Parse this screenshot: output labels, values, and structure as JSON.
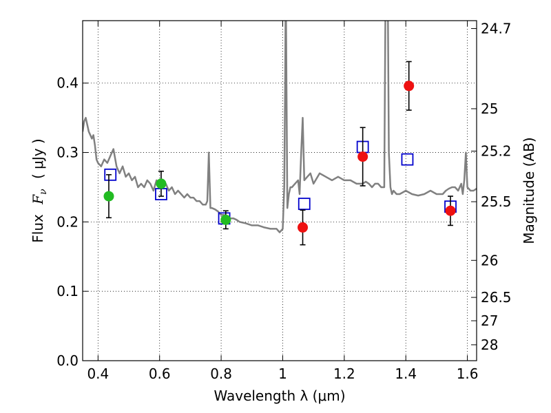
{
  "chart_data": {
    "type": "scatter",
    "xlabel": "Wavelength  λ (μm)",
    "ylabel_text": "Flux",
    "ylabel_math": "F",
    "ylabel_sub": "ν",
    "ylabel_units": "( μJy )",
    "y2label": "Magnitude (AB)",
    "xlim": [
      0.35,
      1.63
    ],
    "ylim": [
      0.0,
      0.49
    ],
    "grid": true,
    "x_ticks": [
      0.4,
      0.6,
      0.8,
      1.0,
      1.2,
      1.4,
      1.6
    ],
    "x_tick_labels": [
      "0.4",
      "0.6",
      "0.8",
      "1",
      "1.2",
      "1.4",
      "1.6"
    ],
    "y_ticks": [
      0.0,
      0.1,
      0.2,
      0.3,
      0.4
    ],
    "y_tick_labels": [
      "0.0",
      "0.1",
      "0.2",
      "0.3",
      "0.4"
    ],
    "mag_ticks": [
      24.7,
      25,
      25.2,
      25.5,
      26,
      26.5,
      27,
      28
    ],
    "mag_tick_labels": [
      "24.7",
      "25",
      "25.2",
      "25.5",
      "26",
      "26.5",
      "27",
      "28"
    ],
    "colors": {
      "spectrum": "#808080",
      "green_points": "#22bb22",
      "red_points": "#ee1111",
      "model_squares": "#0000cc",
      "errorbar": "#000000"
    },
    "series": [
      {
        "name": "spectrum",
        "kind": "line",
        "x": [
          0.35,
          0.355,
          0.36,
          0.365,
          0.37,
          0.375,
          0.38,
          0.385,
          0.39,
          0.395,
          0.4,
          0.41,
          0.42,
          0.43,
          0.44,
          0.45,
          0.46,
          0.465,
          0.47,
          0.48,
          0.49,
          0.5,
          0.51,
          0.52,
          0.53,
          0.54,
          0.55,
          0.56,
          0.57,
          0.58,
          0.59,
          0.6,
          0.61,
          0.62,
          0.63,
          0.64,
          0.65,
          0.66,
          0.67,
          0.68,
          0.69,
          0.7,
          0.71,
          0.72,
          0.73,
          0.74,
          0.75,
          0.755,
          0.76,
          0.765,
          0.77,
          0.78,
          0.79,
          0.8,
          0.81,
          0.82,
          0.83,
          0.84,
          0.85,
          0.86,
          0.88,
          0.9,
          0.92,
          0.94,
          0.96,
          0.98,
          0.99,
          1.0,
          1.005,
          1.008,
          1.01,
          1.012,
          1.015,
          1.02,
          1.025,
          1.03,
          1.04,
          1.05,
          1.055,
          1.06,
          1.065,
          1.07,
          1.08,
          1.09,
          1.1,
          1.12,
          1.14,
          1.16,
          1.18,
          1.2,
          1.22,
          1.24,
          1.26,
          1.27,
          1.28,
          1.29,
          1.3,
          1.31,
          1.32,
          1.33,
          1.335,
          1.34,
          1.345,
          1.35,
          1.355,
          1.36,
          1.37,
          1.38,
          1.4,
          1.42,
          1.44,
          1.46,
          1.48,
          1.5,
          1.52,
          1.53,
          1.54,
          1.55,
          1.56,
          1.57,
          1.58,
          1.585,
          1.59,
          1.595,
          1.6,
          1.61,
          1.62,
          1.63
        ],
        "y": [
          0.33,
          0.345,
          0.35,
          0.34,
          0.33,
          0.325,
          0.32,
          0.325,
          0.31,
          0.29,
          0.285,
          0.28,
          0.29,
          0.285,
          0.295,
          0.305,
          0.28,
          0.275,
          0.27,
          0.28,
          0.265,
          0.27,
          0.26,
          0.265,
          0.25,
          0.255,
          0.25,
          0.26,
          0.255,
          0.245,
          0.26,
          0.255,
          0.25,
          0.255,
          0.245,
          0.25,
          0.24,
          0.245,
          0.24,
          0.235,
          0.24,
          0.235,
          0.235,
          0.23,
          0.23,
          0.225,
          0.225,
          0.23,
          0.3,
          0.22,
          0.22,
          0.218,
          0.215,
          0.21,
          0.21,
          0.208,
          0.205,
          0.205,
          0.203,
          0.2,
          0.198,
          0.195,
          0.195,
          0.192,
          0.19,
          0.19,
          0.185,
          0.19,
          0.25,
          0.4,
          0.55,
          0.42,
          0.22,
          0.24,
          0.25,
          0.25,
          0.255,
          0.26,
          0.24,
          0.3,
          0.35,
          0.26,
          0.265,
          0.27,
          0.255,
          0.27,
          0.265,
          0.26,
          0.265,
          0.26,
          0.26,
          0.255,
          0.255,
          0.258,
          0.255,
          0.25,
          0.255,
          0.255,
          0.25,
          0.25,
          0.6,
          0.62,
          0.3,
          0.25,
          0.24,
          0.245,
          0.24,
          0.24,
          0.245,
          0.24,
          0.238,
          0.24,
          0.245,
          0.24,
          0.24,
          0.245,
          0.248,
          0.25,
          0.25,
          0.245,
          0.255,
          0.24,
          0.26,
          0.3,
          0.25,
          0.245,
          0.245,
          0.248
        ]
      },
      {
        "name": "green_photometry",
        "kind": "points",
        "x": [
          0.435,
          0.605,
          0.815
        ],
        "y": [
          0.237,
          0.255,
          0.203
        ],
        "err": [
          0.031,
          0.018,
          0.013
        ]
      },
      {
        "name": "red_photometry",
        "kind": "points",
        "x": [
          1.065,
          1.26,
          1.41,
          1.545
        ],
        "y": [
          0.192,
          0.294,
          0.396,
          0.216
        ],
        "err": [
          0.025,
          0.042,
          0.035,
          0.021
        ]
      },
      {
        "name": "model_squares",
        "kind": "squares",
        "x": [
          0.44,
          0.605,
          0.81,
          1.07,
          1.26,
          1.405,
          1.545
        ],
        "y": [
          0.268,
          0.24,
          0.205,
          0.226,
          0.308,
          0.29,
          0.222
        ]
      }
    ]
  }
}
